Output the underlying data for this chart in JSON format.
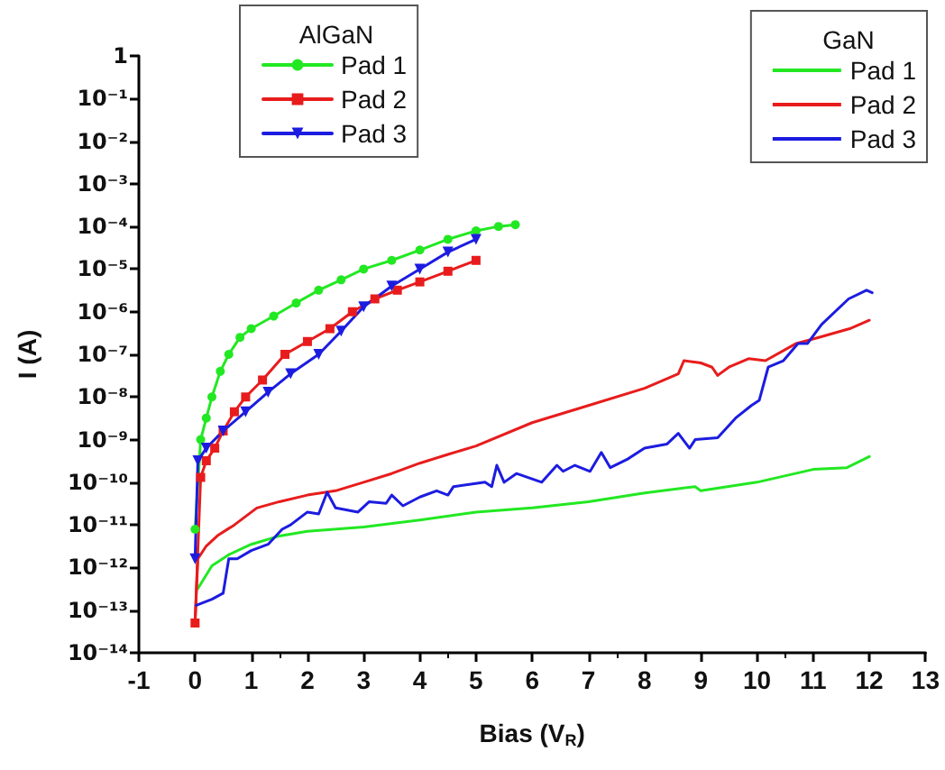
{
  "chart_data": {
    "type": "line",
    "xlabel": "Bias (V$_{R}$)",
    "ylabel": "I (A)",
    "legend_title": [
      "AlGaN",
      "GaN"
    ],
    "legend": "top right",
    "log": "y",
    "grid": false,
    "line_style": "solid",
    "xlim": [
      -1,
      13
    ],
    "xticks": [
      -1,
      0,
      1,
      2,
      3,
      4,
      5,
      6,
      7,
      8,
      9,
      10,
      11,
      12,
      13
    ],
    "ylim": [
      1e-14,
      1
    ],
    "yticks": [
      {
        "value": 1e-14,
        "label": "10⁻¹⁴"
      },
      {
        "value": 1e-13,
        "label": "10⁻¹³"
      },
      {
        "value": 1e-12,
        "label": "10⁻¹²"
      },
      {
        "value": 1e-11,
        "label": "10⁻¹¹"
      },
      {
        "value": 1e-10,
        "label": "10⁻¹⁰"
      },
      {
        "value": 1e-09,
        "label": "10⁻⁹"
      },
      {
        "value": 1e-08,
        "label": "10⁻⁸"
      },
      {
        "value": 1e-07,
        "label": "10⁻⁷"
      },
      {
        "value": 1e-06,
        "label": "10⁻⁶"
      },
      {
        "value": 1e-05,
        "label": "10⁻⁵"
      },
      {
        "value": 0.0001,
        "label": "10⁻⁴"
      },
      {
        "value": 0.001,
        "label": "10⁻³"
      },
      {
        "value": 0.01,
        "label": "10⁻²"
      },
      {
        "value": 0.1,
        "label": "10⁻¹"
      },
      {
        "value": 1,
        "label": "1"
      }
    ],
    "series": [
      {
        "name": "Pad 1",
        "marker": "circle",
        "color": "#22e822",
        "x": [
          0,
          0.1,
          0.2,
          0.3,
          0.45,
          0.6,
          0.8,
          1.0,
          1.4,
          1.8,
          2.2,
          2.6,
          3.0,
          3.5,
          4.0,
          4.5,
          5.0,
          5.4,
          5.7
        ],
        "values": [
          7.9e-12,
          1e-09,
          3.2e-09,
          1e-08,
          4e-08,
          1e-07,
          2.5e-07,
          4e-07,
          7.9e-07,
          1.6e-06,
          3.2e-06,
          5.6e-06,
          1e-05,
          1.6e-05,
          2.8e-05,
          5e-05,
          7.9e-05,
          0.0001,
          0.00011
        ]
      },
      {
        "name": "Pad 2",
        "marker": "square",
        "color": "#e81c1c",
        "x": [
          0,
          0.1,
          0.2,
          0.35,
          0.5,
          0.7,
          0.9,
          1.2,
          1.6,
          2.0,
          2.4,
          2.8,
          3.2,
          3.6,
          4.0,
          4.5,
          5.0
        ],
        "values": [
          5e-14,
          1.3e-10,
          3.2e-10,
          6.3e-10,
          1.6e-09,
          4.5e-09,
          1e-08,
          2.5e-08,
          1e-07,
          2e-07,
          4e-07,
          1e-06,
          2e-06,
          3.2e-06,
          5e-06,
          8.9e-06,
          1.6e-05
        ]
      },
      {
        "name": "Pad 3",
        "marker": "triangle",
        "color": "#1c1ce0",
        "x": [
          0,
          0.05,
          0.2,
          0.5,
          0.9,
          1.3,
          1.7,
          2.2,
          2.6,
          3.0,
          3.5,
          4.0,
          4.5,
          5.0
        ],
        "values": [
          1.6e-12,
          3.2e-10,
          6.3e-10,
          1.6e-09,
          4.5e-09,
          1.3e-08,
          3.5e-08,
          1e-07,
          3.5e-07,
          1.3e-06,
          4e-06,
          1e-05,
          2.5e-05,
          5e-05
        ]
      },
      {
        "name": "Pad 1",
        "marker": "none",
        "color": "#22e822",
        "x": [
          0.05,
          0.3,
          0.6,
          1.0,
          1.5,
          2,
          3,
          4,
          5,
          6,
          7,
          8,
          8.9,
          9,
          10,
          11,
          11.6,
          12
        ],
        "values": [
          3.2e-13,
          1.1e-12,
          2e-12,
          3.5e-12,
          5.5e-12,
          7.1e-12,
          8.9e-12,
          1.3e-11,
          2e-11,
          2.5e-11,
          3.5e-11,
          5.6e-11,
          7.9e-11,
          6.3e-11,
          1e-10,
          2e-10,
          2.2e-10,
          4e-10
        ]
      },
      {
        "name": "Pad 2",
        "marker": "none",
        "color": "#e81c1c",
        "x": [
          0,
          0.05,
          0.2,
          0.4,
          0.7,
          1.1,
          1.5,
          2,
          2.5,
          3,
          3.5,
          4,
          4.5,
          5,
          6,
          7,
          8,
          8.6,
          8.7,
          9.0,
          9.2,
          9.3,
          9.5,
          9.85,
          10.15,
          10.7,
          11.1,
          11.65,
          12
        ],
        "values": [
          5e-14,
          1.6e-12,
          3.2e-12,
          5.6e-12,
          1e-11,
          2.5e-11,
          3.5e-11,
          5e-11,
          6.3e-11,
          1e-10,
          1.6e-10,
          2.8e-10,
          4.5e-10,
          7.1e-10,
          2.5e-09,
          6.3e-09,
          1.6e-08,
          3.5e-08,
          7.1e-08,
          6.3e-08,
          5e-08,
          3.2e-08,
          5e-08,
          7.9e-08,
          7.1e-08,
          1.8e-07,
          2.5e-07,
          4e-07,
          6.3e-07
        ]
      },
      {
        "name": "Pad 3",
        "marker": "none",
        "color": "#1c1ce0",
        "x": [
          0.02,
          0.3,
          0.5,
          0.6,
          0.75,
          1.0,
          1.3,
          1.55,
          1.7,
          2.0,
          2.2,
          2.35,
          2.5,
          2.9,
          3.1,
          3.4,
          3.5,
          3.7,
          4.0,
          4.3,
          4.5,
          4.6,
          5.16,
          5.28,
          5.37,
          5.5,
          5.72,
          6.17,
          6.44,
          6.55,
          6.76,
          7.03,
          7.23,
          7.39,
          7.7,
          8.0,
          8.4,
          8.6,
          8.8,
          8.9,
          9.3,
          9.62,
          9.9,
          10.04,
          10.2,
          10.47,
          10.73,
          10.9,
          11.15,
          11.63,
          11.95,
          12.05
        ],
        "values": [
          1.3e-13,
          1.8e-13,
          2.5e-13,
          1.6e-12,
          1.6e-12,
          2.5e-12,
          3.5e-12,
          7.9e-12,
          1e-11,
          2e-11,
          1.8e-11,
          5.8e-11,
          2.5e-11,
          2e-11,
          3.5e-11,
          3.2e-11,
          5e-11,
          2.8e-11,
          4.5e-11,
          6.3e-11,
          5e-11,
          7.9e-11,
          1e-10,
          7.9e-11,
          2.5e-10,
          1e-10,
          1.6e-10,
          1e-10,
          2.5e-10,
          1.8e-10,
          2.5e-10,
          1.8e-10,
          5e-10,
          2.2e-10,
          3.5e-10,
          6.3e-10,
          7.9e-10,
          1.4e-09,
          6.3e-10,
          1e-09,
          1.1e-09,
          3.2e-09,
          6.3e-09,
          8.3e-09,
          5e-08,
          7.1e-08,
          1.8e-07,
          1.8e-07,
          5e-07,
          2e-06,
          3.2e-06,
          2.8e-06
        ]
      }
    ]
  }
}
